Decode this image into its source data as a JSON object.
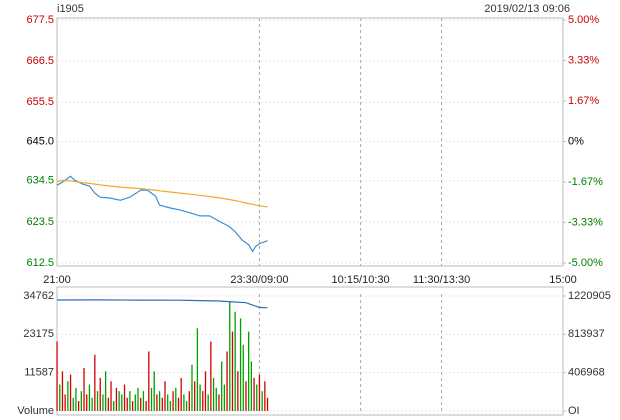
{
  "header": {
    "symbol": "i1905",
    "datetime": "2019/02/13 09:06"
  },
  "chart_data": [
    {
      "type": "line",
      "x": [
        0,
        4,
        10,
        13,
        19,
        24,
        28,
        32,
        39,
        47,
        54,
        62,
        67,
        73,
        76,
        84,
        91,
        99,
        106,
        113,
        121,
        127,
        132,
        137,
        142,
        145,
        147,
        150,
        154,
        156
      ],
      "xlim": [
        0,
        375
      ],
      "xticks": [
        {
          "value": 0,
          "label": "21:00"
        },
        {
          "value": 150,
          "label": "23:30/09:00"
        },
        {
          "value": 225,
          "label": "10:15/10:30"
        },
        {
          "value": 285,
          "label": "11:30/13:30"
        },
        {
          "value": 375,
          "label": "15:00"
        }
      ],
      "ylim": [
        612.5,
        677.5
      ],
      "yticks": [
        612.5,
        623.5,
        634.5,
        {
          "value": 645,
          "label": "645.0"
        },
        655.5,
        666.5,
        677.5
      ],
      "y2lim": [
        -5,
        5
      ],
      "y2ticks": [
        {
          "value": -5,
          "label": "-5.00%"
        },
        {
          "value": -3.33,
          "label": "-3.33%"
        },
        {
          "value": -1.67,
          "label": "-1.67%"
        },
        {
          "value": 0,
          "label": "0%"
        },
        {
          "value": 1.67,
          "label": "1.67%"
        },
        {
          "value": 3.33,
          "label": "3.33%"
        },
        {
          "value": 5,
          "label": "5.00%"
        }
      ],
      "tick_colors": {
        "up": "#cc0000",
        "flat": "#000000",
        "down": "#008000"
      },
      "grid": true,
      "series": [
        {
          "color": "#3b8fd9",
          "values": [
            633.3,
            634.1,
            635.7,
            634.7,
            633.6,
            633.1,
            631.2,
            630.1,
            629.9,
            629.3,
            630.1,
            632.0,
            632.0,
            630.4,
            628.0,
            627.2,
            626.7,
            625.9,
            625.1,
            625.1,
            623.5,
            622.4,
            620.9,
            618.7,
            617.4,
            615.6,
            616.9,
            617.7,
            618.2,
            618.5
          ]
        },
        {
          "color": "#f0a830",
          "values": [
            634.3,
            634.6,
            634.5,
            634.3,
            634.0,
            633.8,
            633.6,
            633.4,
            633.1,
            632.8,
            632.6,
            632.4,
            632.2,
            632.0,
            631.8,
            631.5,
            631.2,
            630.9,
            630.6,
            630.3,
            629.9,
            629.5,
            629.2,
            628.8,
            628.4,
            628.2,
            628.0,
            627.8,
            627.6,
            627.5
          ]
        }
      ]
    },
    {
      "type": "bar",
      "x": [
        0,
        2,
        4,
        6,
        8,
        10,
        12,
        14,
        16,
        18,
        20,
        22,
        24,
        26,
        28,
        30,
        32,
        34,
        36,
        38,
        40,
        42,
        44,
        46,
        48,
        50,
        52,
        54,
        56,
        58,
        60,
        62,
        64,
        66,
        68,
        70,
        72,
        74,
        76,
        78,
        80,
        82,
        84,
        86,
        88,
        90,
        92,
        94,
        96,
        98,
        100,
        102,
        104,
        106,
        108,
        110,
        112,
        114,
        116,
        118,
        120,
        122,
        124,
        126,
        128,
        130,
        132,
        134,
        136,
        138,
        140,
        142,
        144,
        146,
        148,
        150,
        152,
        154,
        156
      ],
      "xlim": [
        0,
        375
      ],
      "xticks": [
        150,
        225,
        285
      ],
      "ylim": [
        0,
        34762
      ],
      "yticks": [
        {
          "value": 0,
          "label": "Volume"
        },
        11587,
        23175,
        34762
      ],
      "y2lim": [
        0,
        1220905
      ],
      "y2ticks": [
        {
          "value": 0,
          "label": "OI"
        },
        406968,
        813937,
        1220905
      ],
      "grid": true,
      "series": [
        {
          "values": [
            21000,
            8000,
            12000,
            5000,
            9000,
            11000,
            4000,
            7000,
            3000,
            6000,
            13000,
            5000,
            8000,
            4000,
            17000,
            6000,
            10000,
            5000,
            12000,
            4000,
            9000,
            3000,
            7000,
            6000,
            5000,
            8000,
            4000,
            6000,
            3000,
            5000,
            7000,
            4000,
            6000,
            3000,
            18000,
            7000,
            12000,
            5000,
            6000,
            4000,
            9000,
            5000,
            3000,
            6000,
            7000,
            4000,
            10000,
            5000,
            3000,
            6000,
            14000,
            9000,
            25000,
            8000,
            6000,
            12000,
            5000,
            21000,
            10000,
            7000,
            5000,
            15000,
            8000,
            18000,
            33000,
            24000,
            30000,
            12000,
            28000,
            20000,
            9000,
            24000,
            15000,
            10000,
            8000,
            11000,
            6000,
            9000,
            4000
          ],
          "colors": [
            "#d40000",
            "#00a000",
            "#d40000",
            "#d40000",
            "#00a000",
            "#d40000",
            "#00a000",
            "#00a000",
            "#d40000",
            "#00a000",
            "#d40000",
            "#d40000",
            "#00a000",
            "#00a000",
            "#d40000",
            "#00a000",
            "#d40000",
            "#00a000",
            "#00a000",
            "#d40000",
            "#d40000",
            "#00a000",
            "#d40000",
            "#00a000",
            "#00a000",
            "#d40000",
            "#d40000",
            "#00a000",
            "#d40000",
            "#00a000",
            "#00a000",
            "#d40000",
            "#00a000",
            "#d40000",
            "#d40000",
            "#00a000",
            "#00a000",
            "#d40000",
            "#00a000",
            "#d40000",
            "#d40000",
            "#00a000",
            "#00a000",
            "#d40000",
            "#00a000",
            "#d40000",
            "#d40000",
            "#00a000",
            "#00a000",
            "#d40000",
            "#00a000",
            "#d40000",
            "#00a000",
            "#00a000",
            "#d40000",
            "#d40000",
            "#00a000",
            "#d40000",
            "#00a000",
            "#00a000",
            "#d40000",
            "#00a000",
            "#00a000",
            "#d40000",
            "#00a000",
            "#d40000",
            "#00a000",
            "#d40000",
            "#00a000",
            "#00a000",
            "#d40000",
            "#00a000",
            "#00a000",
            "#d40000",
            "#00a000",
            "#d40000",
            "#00a000",
            "#d40000",
            "#d40000"
          ]
        },
        {
          "type": "line",
          "axis": "y2",
          "color": "#2a6fb5",
          "x": [
            0,
            30,
            60,
            90,
            106,
            120,
            140,
            150,
            156
          ],
          "values": [
            1178000,
            1180000,
            1177000,
            1176000,
            1172000,
            1168000,
            1150000,
            1100000,
            1096000
          ]
        }
      ]
    }
  ]
}
